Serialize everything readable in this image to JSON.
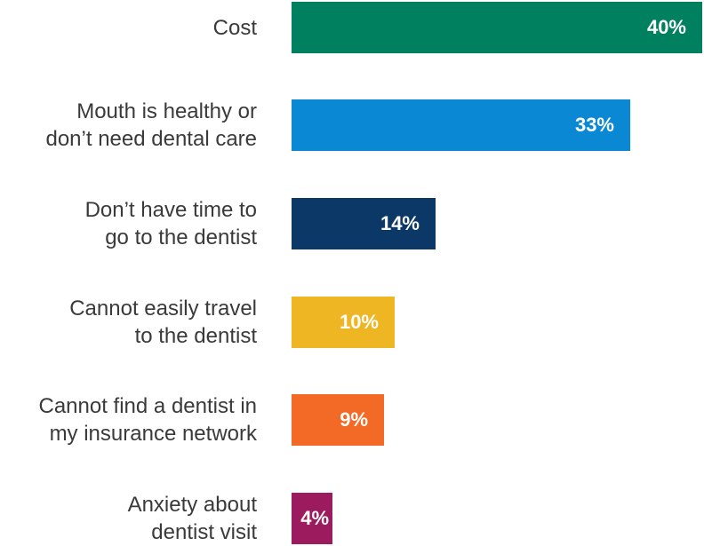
{
  "chart_data": {
    "type": "bar",
    "orientation": "horizontal",
    "categories": [
      "Cost",
      "Mouth is healthy or\ndon’t need dental care",
      "Don’t have time to\ngo to the dentist",
      "Cannot easily travel\nto the dentist",
      "Cannot find a dentist in\nmy insurance network",
      "Anxiety about\ndentist visit"
    ],
    "values": [
      40,
      33,
      14,
      10,
      9,
      4
    ],
    "value_labels": [
      "40%",
      "33%",
      "14%",
      "10%",
      "9%",
      "4%"
    ],
    "colors": [
      "#00805f",
      "#0a88d4",
      "#0b3866",
      "#efb623",
      "#f26a26",
      "#9c1b5e"
    ],
    "xlim": [
      0,
      40
    ],
    "grid": false,
    "legend": "none"
  }
}
